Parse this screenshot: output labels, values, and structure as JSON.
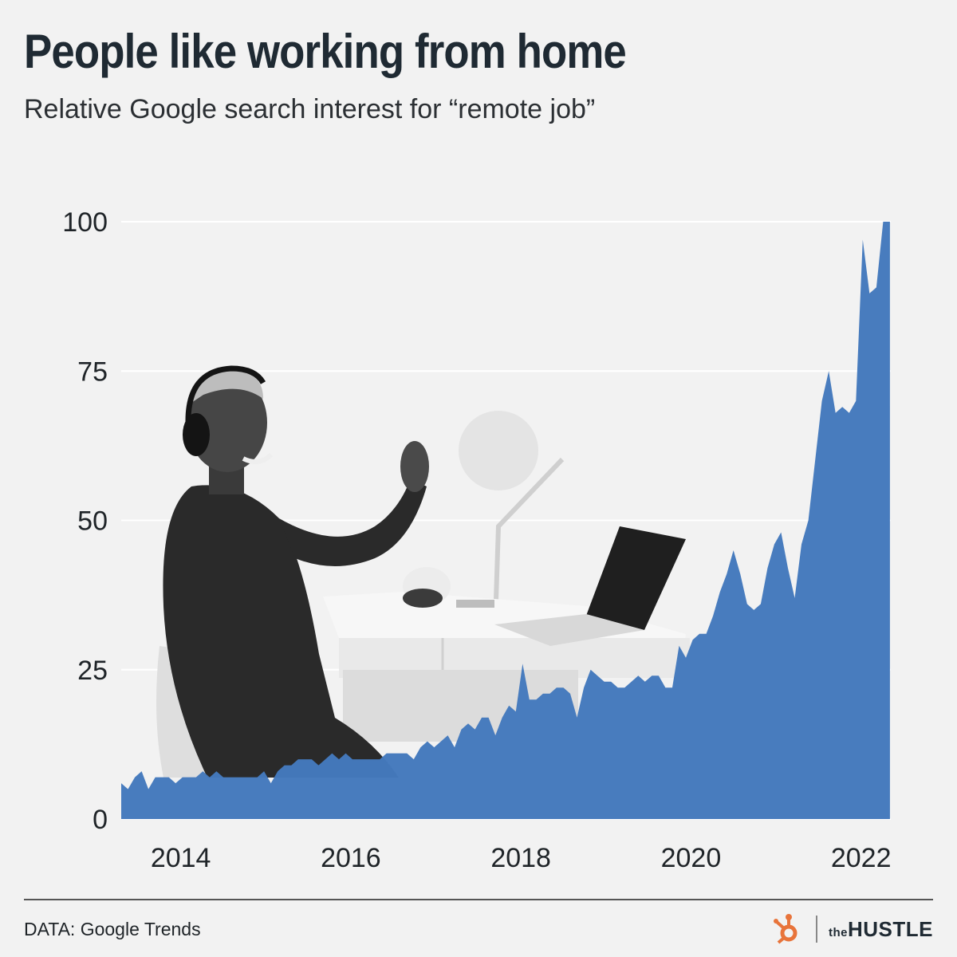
{
  "header": {
    "title": "People like working from home",
    "subtitle": "Relative Google search interest for “remote job”"
  },
  "footer": {
    "source": "DATA: Google Trends",
    "brand_prefix": "the",
    "brand_name": "HUSTLE"
  },
  "colors": {
    "area": "#4479bd",
    "grid": "#ffffff",
    "hubspot_orange": "#e8743b"
  },
  "icons": {
    "hubspot_logo": "hubspot-sprocket-icon",
    "photo": "person-working-photo"
  },
  "chart_data": {
    "type": "area",
    "title": "People like working from home",
    "subtitle": "Relative Google search interest for “remote job”",
    "xlabel": "",
    "ylabel": "",
    "ylim": [
      0,
      100
    ],
    "xlim": [
      2013.3,
      2022.35
    ],
    "grid": true,
    "yticks": [
      0,
      25,
      50,
      75,
      100
    ],
    "xticks": [
      2014,
      2016,
      2018,
      2020,
      2022
    ],
    "ytick_labels": [
      "0",
      "25",
      "50",
      "75",
      "100"
    ],
    "xtick_labels": [
      "2014",
      "2016",
      "2018",
      "2020",
      "2022"
    ],
    "series": [
      {
        "x": [
          2013.3,
          2013.38,
          2013.46,
          2013.54,
          2013.62,
          2013.7,
          2013.78,
          2013.86,
          2013.94,
          2014.02,
          2014.1,
          2014.18,
          2014.26,
          2014.34,
          2014.42,
          2014.5,
          2014.58,
          2014.66,
          2014.74,
          2014.82,
          2014.9,
          2014.98,
          2015.06,
          2015.14,
          2015.22,
          2015.3,
          2015.38,
          2015.46,
          2015.54,
          2015.62,
          2015.7,
          2015.78,
          2015.86,
          2015.94,
          2016.02,
          2016.1,
          2016.18,
          2016.26,
          2016.34,
          2016.42,
          2016.5,
          2016.58,
          2016.66,
          2016.74,
          2016.82,
          2016.9,
          2016.98,
          2017.06,
          2017.14,
          2017.22,
          2017.3,
          2017.38,
          2017.46,
          2017.54,
          2017.62,
          2017.7,
          2017.78,
          2017.86,
          2017.94,
          2018.02,
          2018.1,
          2018.18,
          2018.26,
          2018.34,
          2018.42,
          2018.5,
          2018.58,
          2018.66,
          2018.74,
          2018.82,
          2018.9,
          2018.98,
          2019.06,
          2019.14,
          2019.22,
          2019.3,
          2019.38,
          2019.46,
          2019.54,
          2019.62,
          2019.7,
          2019.78,
          2019.86,
          2019.94,
          2020.02,
          2020.1,
          2020.18,
          2020.26,
          2020.34,
          2020.42,
          2020.5,
          2020.58,
          2020.66,
          2020.74,
          2020.82,
          2020.9,
          2020.98,
          2021.06,
          2021.14,
          2021.22,
          2021.3,
          2021.38,
          2021.46,
          2021.54,
          2021.62,
          2021.7,
          2021.78,
          2021.86,
          2021.94,
          2022.02,
          2022.1,
          2022.18,
          2022.26,
          2022.34
        ],
        "values": [
          6,
          5,
          7,
          8,
          5,
          7,
          7,
          7,
          6,
          7,
          7,
          7,
          8,
          7,
          8,
          7,
          7,
          7,
          7,
          7,
          7,
          8,
          6,
          8,
          9,
          9,
          10,
          10,
          10,
          9,
          10,
          11,
          10,
          11,
          10,
          10,
          10,
          10,
          10,
          11,
          11,
          11,
          11,
          10,
          12,
          13,
          12,
          13,
          14,
          12,
          15,
          16,
          15,
          17,
          17,
          14,
          17,
          19,
          18,
          26,
          20,
          20,
          21,
          21,
          22,
          22,
          21,
          17,
          22,
          25,
          24,
          23,
          23,
          22,
          22,
          23,
          24,
          23,
          24,
          24,
          22,
          22,
          29,
          27,
          30,
          31,
          31,
          34,
          38,
          41,
          45,
          41,
          36,
          35,
          36,
          42,
          46,
          48,
          42,
          37,
          46,
          50,
          60,
          70,
          75,
          68,
          69,
          68,
          70,
          97,
          88,
          89,
          100,
          100
        ]
      }
    ]
  }
}
